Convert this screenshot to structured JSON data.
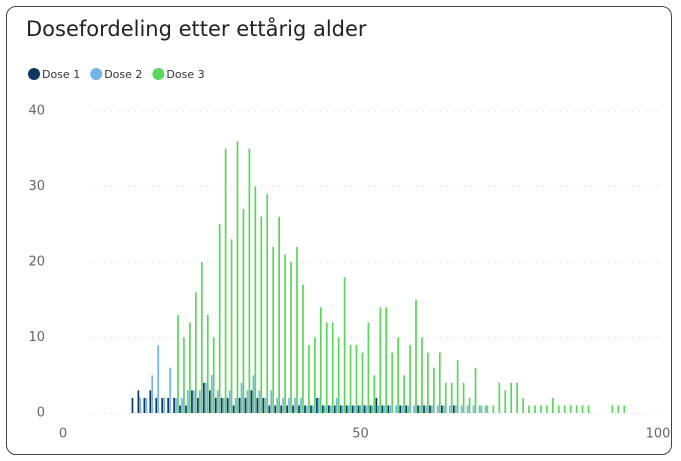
{
  "chart_data": {
    "type": "bar",
    "title": "Dosefordeling etter ettårig alder",
    "x": [
      12,
      13,
      14,
      15,
      16,
      17,
      18,
      19,
      20,
      21,
      22,
      23,
      24,
      25,
      26,
      27,
      28,
      29,
      30,
      31,
      32,
      33,
      34,
      35,
      36,
      37,
      38,
      39,
      40,
      41,
      42,
      43,
      44,
      45,
      46,
      47,
      48,
      49,
      50,
      51,
      52,
      53,
      54,
      55,
      56,
      57,
      58,
      59,
      60,
      61,
      62,
      63,
      64,
      65,
      66,
      67,
      68,
      69,
      70,
      71,
      72,
      73,
      74,
      75,
      76,
      77,
      78,
      79,
      80,
      81,
      82,
      83,
      84,
      85,
      86,
      87,
      88,
      89,
      90,
      91,
      92,
      93,
      94
    ],
    "series": [
      {
        "name": "Dose 1",
        "color": "#12375f",
        "values": [
          2,
          3,
          2,
          3,
          2,
          2,
          2,
          2,
          1,
          1,
          3,
          2,
          4,
          3,
          2,
          2,
          2,
          1,
          2,
          2,
          3,
          2,
          2,
          1,
          1,
          1,
          1,
          1,
          1,
          1,
          1,
          2,
          1,
          1,
          1,
          1,
          1,
          1,
          1,
          1,
          1,
          2,
          1,
          1,
          0,
          1,
          1,
          0,
          1,
          1,
          1,
          0,
          1,
          0,
          1,
          0,
          0,
          0,
          0,
          0,
          0,
          0,
          0,
          0,
          0,
          0,
          0,
          0,
          0,
          0,
          0,
          0,
          0,
          0,
          0,
          0,
          0,
          0,
          0,
          0,
          0,
          0,
          0
        ]
      },
      {
        "name": "Dose 2",
        "color": "#74b5e8",
        "values": [
          0,
          2,
          2,
          5,
          9,
          2,
          6,
          2,
          2,
          3,
          3,
          3,
          4,
          5,
          3,
          2,
          3,
          2,
          4,
          3,
          5,
          3,
          2,
          3,
          2,
          2,
          2,
          2,
          2,
          1,
          1,
          2,
          1,
          1,
          2,
          1,
          1,
          1,
          1,
          1,
          1,
          1,
          1,
          1,
          1,
          1,
          1,
          1,
          1,
          1,
          1,
          1,
          1,
          1,
          1,
          1,
          1,
          1,
          1,
          1,
          0,
          0,
          0,
          0,
          0,
          0,
          0,
          0,
          0,
          0,
          0,
          0,
          0,
          0,
          0,
          0,
          0,
          0,
          0,
          0,
          0,
          0,
          0
        ]
      },
      {
        "name": "Dose 3",
        "color": "#5ad65a",
        "values": [
          0,
          0,
          0,
          0,
          0,
          0,
          0,
          13,
          10,
          12,
          16,
          20,
          13,
          10,
          25,
          35,
          23,
          36,
          27,
          35,
          30,
          26,
          29,
          22,
          26,
          21,
          20,
          22,
          17,
          9,
          10,
          14,
          12,
          12,
          10,
          18,
          9,
          9,
          8,
          12,
          5,
          14,
          14,
          8,
          10,
          5,
          9,
          15,
          10,
          8,
          6,
          8,
          4,
          4,
          7,
          4,
          2,
          6,
          1,
          1,
          1,
          4,
          3,
          4,
          4,
          2,
          1,
          1,
          1,
          1,
          2,
          1,
          1,
          1,
          1,
          1,
          1,
          0,
          0,
          0,
          1,
          1,
          1
        ]
      }
    ],
    "xlim": [
      0,
      100
    ],
    "xticks": [
      0,
      50,
      100
    ],
    "ylim": [
      0,
      40
    ],
    "yticks": [
      0,
      10,
      20,
      30,
      40
    ],
    "grid": true
  }
}
